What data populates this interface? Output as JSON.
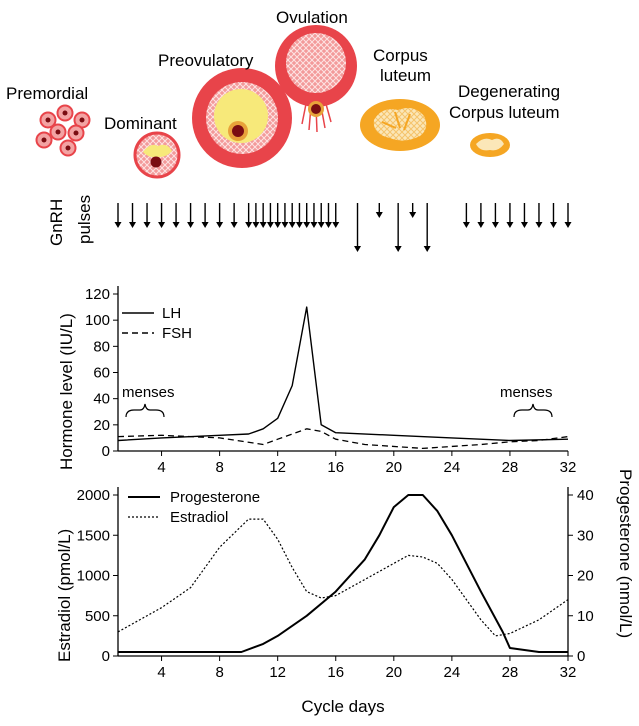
{
  "follicles": {
    "premordial": "Premordial",
    "dominant": "Dominant",
    "preovulatory": "Preovulatory",
    "ovulation": "Ovulation",
    "corpus_luteum_1": "Corpus",
    "corpus_luteum_2": "luteum",
    "degenerating_1": "Degenerating",
    "degenerating_2": "Corpus luteum"
  },
  "gnrh": {
    "label_1": "GnRH",
    "label_2": "pulses",
    "short_pulse_days": [
      1,
      2,
      3,
      4,
      5,
      6,
      7,
      8,
      9,
      10,
      10.5,
      11,
      11.5,
      12,
      12.5,
      13,
      13.5,
      14,
      14.5,
      15,
      15.5,
      16,
      25,
      26,
      27,
      28,
      29,
      30,
      31,
      32
    ],
    "tiny_pulse_days": [
      19,
      21.3
    ],
    "long_pulse_days": [
      17.5,
      20.3,
      22.3
    ]
  },
  "colors": {
    "follicle_red": "#e8444a",
    "follicle_pink": "#f3a3a3",
    "follicle_yellow": "#f7e97a",
    "follicle_dark": "#7a0d12",
    "luteum_orange": "#f5a623",
    "luteum_light": "#fbe7b8"
  },
  "chart_data": [
    {
      "type": "line",
      "title": "",
      "xlabel": "",
      "ylabel": "Hormone level (IU/L)",
      "xlim": [
        1,
        32
      ],
      "ylim": [
        0,
        120
      ],
      "xticks": [
        4,
        8,
        12,
        16,
        20,
        24,
        28,
        32
      ],
      "yticks": [
        0,
        20,
        40,
        60,
        80,
        100,
        120
      ],
      "series": [
        {
          "name": "LH",
          "style": "solid",
          "x": [
            1,
            4,
            8,
            10,
            11,
            12,
            13,
            14,
            15,
            16,
            20,
            24,
            28,
            32
          ],
          "y": [
            8,
            10,
            12,
            13,
            17,
            25,
            50,
            110,
            20,
            14,
            12,
            10,
            8,
            9
          ]
        },
        {
          "name": "FSH",
          "style": "dashed",
          "x": [
            1,
            4,
            8,
            11,
            12,
            13,
            14,
            15,
            16,
            18,
            22,
            26,
            28,
            30,
            32
          ],
          "y": [
            11,
            12,
            10,
            5,
            9,
            13,
            17,
            15,
            9,
            5,
            2,
            5,
            7,
            8,
            11
          ]
        }
      ],
      "annotations": [
        {
          "text": "menses",
          "x_from": 1,
          "x_to": 4
        },
        {
          "text": "menses",
          "x_from": 28,
          "x_to": 32
        }
      ]
    },
    {
      "type": "line",
      "title": "",
      "xlabel": "Cycle days",
      "ylabel": "Estradiol (pmol/L)",
      "ylabel_right": "Progesterone (nmol/L)",
      "xlim": [
        1,
        32
      ],
      "ylim": [
        0,
        2000
      ],
      "ylim_right": [
        0,
        40
      ],
      "xticks": [
        4,
        8,
        12,
        16,
        20,
        24,
        28,
        32
      ],
      "yticks": [
        0,
        500,
        1000,
        1500,
        2000
      ],
      "yticks_right": [
        0,
        10,
        20,
        30,
        40
      ],
      "series": [
        {
          "name": "Progesterone",
          "style": "solid",
          "axis": "right",
          "x": [
            1,
            4,
            8,
            9.5,
            11,
            12,
            14,
            16,
            18,
            19,
            20,
            21,
            22,
            23,
            24,
            26,
            27.5,
            28,
            30,
            32
          ],
          "y": [
            1,
            1,
            1,
            1,
            3,
            5,
            10,
            16,
            24,
            30,
            37,
            40,
            40,
            36,
            30,
            16,
            6,
            2,
            1,
            1
          ]
        },
        {
          "name": "Estradiol",
          "style": "dotted",
          "axis": "left",
          "x": [
            1,
            4,
            6,
            8,
            10,
            11,
            12,
            13,
            14,
            15,
            16,
            18,
            20,
            21,
            22,
            23,
            24,
            26,
            27,
            28,
            30,
            32
          ],
          "y": [
            300,
            600,
            850,
            1350,
            1700,
            1700,
            1450,
            1100,
            800,
            720,
            750,
            950,
            1150,
            1250,
            1230,
            1150,
            950,
            450,
            250,
            280,
            450,
            700
          ]
        }
      ]
    }
  ],
  "labels": {
    "legend_lh": "LH",
    "legend_fsh": "FSH",
    "menses_left": "menses",
    "menses_right": "menses",
    "legend_progesterone": "Progesterone",
    "legend_estradiol": "Estradiol",
    "y1_label": "Hormone level (IU/L)",
    "y2_label": "Estradiol (pmol/L)",
    "y2_right_label": "Progesterone (nmol/L)",
    "x_label": "Cycle days"
  }
}
